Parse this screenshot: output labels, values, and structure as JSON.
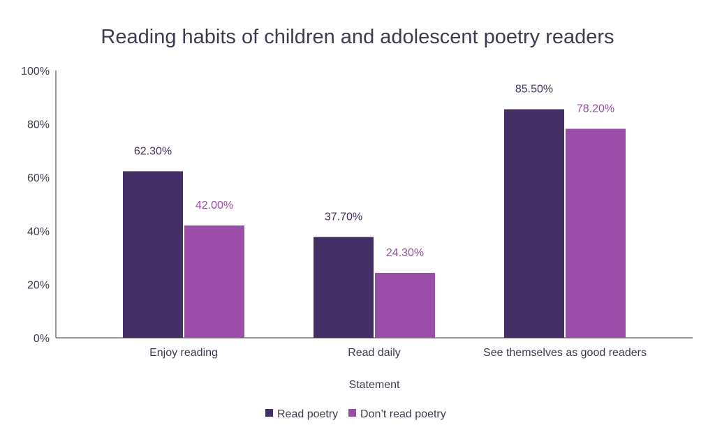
{
  "chart_data": {
    "type": "bar",
    "title": "Reading habits of children and adolescent poetry readers",
    "xlabel": "Statement",
    "ylabel": "",
    "categories": [
      "Enjoy reading",
      "Read daily",
      "See themselves as good readers"
    ],
    "series": [
      {
        "name": "Read poetry",
        "values": [
          62.3,
          37.7,
          85.5
        ],
        "labels": [
          "62.30%",
          "37.70%",
          "85.50%"
        ],
        "color": "#432f66"
      },
      {
        "name": "Don’t read poetry",
        "values": [
          42.0,
          24.3,
          78.2
        ],
        "labels": [
          "42.00%",
          "24.30%",
          "78.20%"
        ],
        "color": "#9c4ca9"
      }
    ],
    "ylim": [
      0,
      100
    ],
    "yticks": [
      "0%",
      "20%",
      "40%",
      "60%",
      "80%",
      "100%"
    ],
    "grid": false,
    "legend": "bottom"
  }
}
